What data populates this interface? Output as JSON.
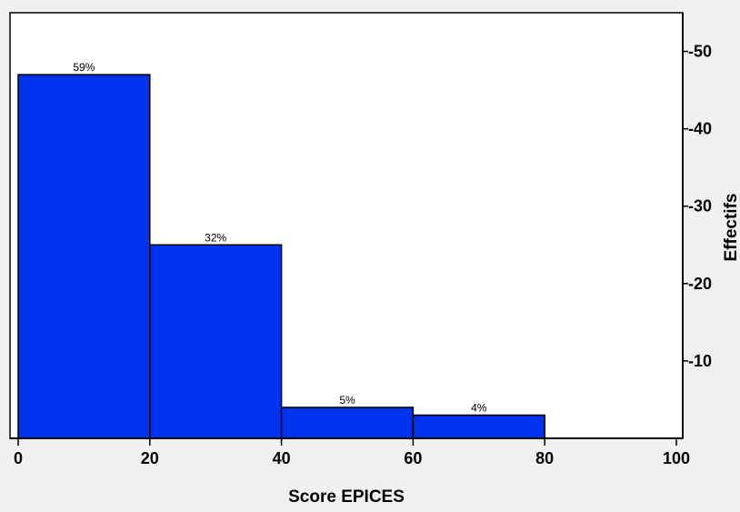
{
  "chart_data": {
    "type": "bar",
    "subtype": "histogram",
    "bins": [
      {
        "x0": 0,
        "x1": 20,
        "value": 47,
        "label": "59%"
      },
      {
        "x0": 20,
        "x1": 40,
        "value": 25,
        "label": "32%"
      },
      {
        "x0": 40,
        "x1": 60,
        "value": 4,
        "label": "5%"
      },
      {
        "x0": 60,
        "x1": 80,
        "value": 3,
        "label": "4%"
      }
    ],
    "xlabel": "Score EPICES",
    "ylabel": "Effectifs",
    "xlim": [
      0,
      100
    ],
    "ylim": [
      0,
      55
    ],
    "x_ticks": [
      0,
      20,
      40,
      60,
      80,
      100
    ],
    "y_ticks": [
      10,
      20,
      30,
      40,
      50
    ],
    "y_axis_side": "right",
    "grid": false,
    "bar_color": "#0033ee",
    "background": "#ffffff"
  }
}
